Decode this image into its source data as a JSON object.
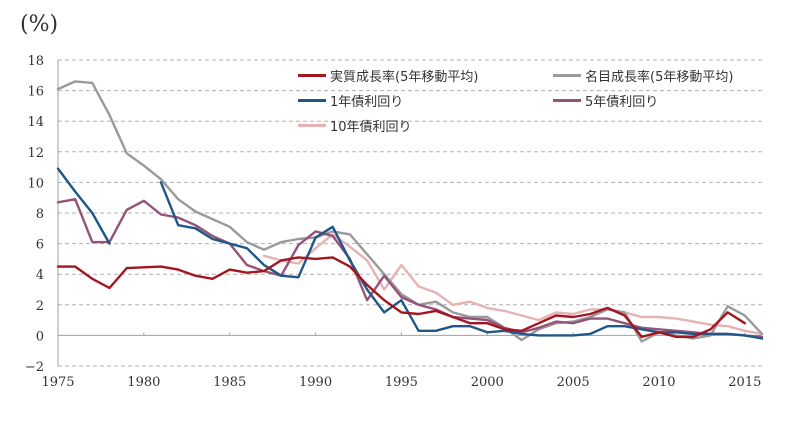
{
  "chart_data": {
    "type": "line",
    "title": "",
    "unit_label": "(%)",
    "xlabel": "",
    "ylabel": "(%)",
    "xlim": [
      1975,
      2016
    ],
    "ylim": [
      -2,
      18
    ],
    "grid": true,
    "y_ticks": [
      -2,
      0,
      2,
      4,
      6,
      8,
      10,
      12,
      14,
      16,
      18
    ],
    "x_ticks": [
      1975,
      1980,
      1985,
      1990,
      1995,
      2000,
      2005,
      2010,
      2015
    ],
    "legend_position": "top-right",
    "series": [
      {
        "name": "実質成長率(5年移動平均)",
        "color": "#a3161f",
        "points": [
          [
            1975,
            4.5
          ],
          [
            1976,
            4.5
          ],
          [
            1977,
            3.7
          ],
          [
            1978,
            3.1
          ],
          [
            1979,
            4.4
          ],
          [
            1980,
            4.45
          ],
          [
            1981,
            4.5
          ],
          [
            1982,
            4.3
          ],
          [
            1983,
            3.9
          ],
          [
            1984,
            3.7
          ],
          [
            1985,
            4.3
          ],
          [
            1986,
            4.1
          ],
          [
            1987,
            4.2
          ],
          [
            1988,
            4.9
          ],
          [
            1989,
            5.1
          ],
          [
            1990,
            5.0
          ],
          [
            1991,
            5.1
          ],
          [
            1992,
            4.5
          ],
          [
            1993,
            3.3
          ],
          [
            1994,
            2.3
          ],
          [
            1995,
            1.5
          ],
          [
            1996,
            1.4
          ],
          [
            1997,
            1.6
          ],
          [
            1998,
            1.2
          ],
          [
            1999,
            0.8
          ],
          [
            2000,
            0.8
          ],
          [
            2001,
            0.4
          ],
          [
            2002,
            0.3
          ],
          [
            2003,
            0.8
          ],
          [
            2004,
            1.3
          ],
          [
            2005,
            1.2
          ],
          [
            2006,
            1.4
          ],
          [
            2007,
            1.8
          ],
          [
            2008,
            1.3
          ],
          [
            2009,
            -0.1
          ],
          [
            2010,
            0.2
          ],
          [
            2011,
            -0.1
          ],
          [
            2012,
            -0.1
          ],
          [
            2013,
            0.4
          ],
          [
            2014,
            1.5
          ],
          [
            2015,
            0.8
          ]
        ]
      },
      {
        "name": "名目成長率(5年移動平均)",
        "color": "#9a9a9a",
        "points": [
          [
            1975,
            16.1
          ],
          [
            1976,
            16.6
          ],
          [
            1977,
            16.5
          ],
          [
            1978,
            14.4
          ],
          [
            1979,
            11.9
          ],
          [
            1980,
            11.1
          ],
          [
            1981,
            10.2
          ],
          [
            1982,
            8.9
          ],
          [
            1983,
            8.1
          ],
          [
            1984,
            7.6
          ],
          [
            1985,
            7.1
          ],
          [
            1986,
            6.1
          ],
          [
            1987,
            5.6
          ],
          [
            1988,
            6.1
          ],
          [
            1989,
            6.3
          ],
          [
            1990,
            6.4
          ],
          [
            1991,
            6.8
          ],
          [
            1992,
            6.6
          ],
          [
            1993,
            5.3
          ],
          [
            1994,
            4.0
          ],
          [
            1995,
            2.7
          ],
          [
            1996,
            2.0
          ],
          [
            1997,
            2.2
          ],
          [
            1998,
            1.5
          ],
          [
            1999,
            1.2
          ],
          [
            2000,
            1.2
          ],
          [
            2001,
            0.5
          ],
          [
            2002,
            -0.3
          ],
          [
            2003,
            0.4
          ],
          [
            2004,
            0.8
          ],
          [
            2005,
            0.9
          ],
          [
            2006,
            1.2
          ],
          [
            2007,
            1.7
          ],
          [
            2008,
            1.5
          ],
          [
            2009,
            -0.4
          ],
          [
            2010,
            0.2
          ],
          [
            2011,
            0.0
          ],
          [
            2012,
            -0.2
          ],
          [
            2013,
            0.0
          ],
          [
            2014,
            1.9
          ],
          [
            2015,
            1.3
          ],
          [
            2016,
            0.1
          ]
        ]
      },
      {
        "name": "1年債利回り",
        "color": "#1f5788",
        "segments": [
          [
            [
              1975,
              10.9
            ],
            [
              1976,
              9.4
            ],
            [
              1977,
              8.0
            ],
            [
              1978,
              6.0
            ]
          ],
          [
            [
              1981,
              10.0
            ],
            [
              1982,
              7.2
            ],
            [
              1983,
              7.0
            ],
            [
              1984,
              6.3
            ],
            [
              1985,
              6.0
            ],
            [
              1986,
              5.7
            ],
            [
              1987,
              4.6
            ],
            [
              1988,
              3.9
            ],
            [
              1989,
              3.8
            ],
            [
              1990,
              6.4
            ],
            [
              1991,
              7.1
            ],
            [
              1992,
              4.9
            ],
            [
              1993,
              3.0
            ],
            [
              1994,
              1.5
            ],
            [
              1995,
              2.3
            ],
            [
              1996,
              0.3
            ],
            [
              1997,
              0.3
            ],
            [
              1998,
              0.6
            ],
            [
              1999,
              0.6
            ],
            [
              2000,
              0.2
            ],
            [
              2001,
              0.3
            ],
            [
              2002,
              0.1
            ],
            [
              2003,
              0.0
            ],
            [
              2004,
              0.0
            ],
            [
              2005,
              0.0
            ],
            [
              2006,
              0.1
            ],
            [
              2007,
              0.6
            ],
            [
              2008,
              0.6
            ],
            [
              2009,
              0.4
            ],
            [
              2010,
              0.2
            ],
            [
              2011,
              0.2
            ],
            [
              2012,
              0.1
            ],
            [
              2013,
              0.1
            ],
            [
              2014,
              0.1
            ],
            [
              2015,
              0.0
            ],
            [
              2016,
              -0.2
            ]
          ]
        ]
      },
      {
        "name": "5年債利回り",
        "color": "#945378",
        "points": [
          [
            1975,
            8.7
          ],
          [
            1976,
            8.9
          ],
          [
            1977,
            6.1
          ],
          [
            1978,
            6.1
          ],
          [
            1979,
            8.2
          ],
          [
            1980,
            8.8
          ],
          [
            1981,
            7.9
          ],
          [
            1982,
            7.7
          ],
          [
            1983,
            7.2
          ],
          [
            1984,
            6.5
          ],
          [
            1985,
            6.0
          ],
          [
            1986,
            4.6
          ],
          [
            1987,
            4.2
          ],
          [
            1988,
            3.9
          ],
          [
            1989,
            5.9
          ],
          [
            1990,
            6.8
          ],
          [
            1991,
            6.5
          ],
          [
            1992,
            5.0
          ],
          [
            1993,
            2.3
          ],
          [
            1994,
            3.9
          ],
          [
            1995,
            2.5
          ],
          [
            1996,
            2.0
          ],
          [
            1997,
            1.7
          ],
          [
            1998,
            1.2
          ],
          [
            1999,
            1.1
          ],
          [
            2000,
            1.0
          ],
          [
            2001,
            0.5
          ],
          [
            2002,
            0.2
          ],
          [
            2003,
            0.5
          ],
          [
            2004,
            0.9
          ],
          [
            2005,
            0.8
          ],
          [
            2006,
            1.1
          ],
          [
            2007,
            1.1
          ],
          [
            2008,
            0.8
          ],
          [
            2009,
            0.5
          ],
          [
            2010,
            0.4
          ],
          [
            2011,
            0.3
          ],
          [
            2012,
            0.2
          ],
          [
            2013,
            0.1
          ],
          [
            2014,
            0.1
          ],
          [
            2015,
            0.0
          ],
          [
            2016,
            -0.1
          ]
        ]
      },
      {
        "name": "10年債利回り",
        "color": "#e6b2b5",
        "points": [
          [
            1987,
            5.2
          ],
          [
            1988,
            4.9
          ],
          [
            1989,
            4.7
          ],
          [
            1990,
            5.7
          ],
          [
            1991,
            6.6
          ],
          [
            1992,
            5.8
          ],
          [
            1993,
            4.9
          ],
          [
            1994,
            3.0
          ],
          [
            1995,
            4.6
          ],
          [
            1996,
            3.2
          ],
          [
            1997,
            2.8
          ],
          [
            1998,
            2.0
          ],
          [
            1999,
            2.2
          ],
          [
            2000,
            1.8
          ],
          [
            2001,
            1.6
          ],
          [
            2002,
            1.3
          ],
          [
            2003,
            1.0
          ],
          [
            2004,
            1.5
          ],
          [
            2005,
            1.4
          ],
          [
            2006,
            1.7
          ],
          [
            2007,
            1.7
          ],
          [
            2008,
            1.5
          ],
          [
            2009,
            1.2
          ],
          [
            2010,
            1.2
          ],
          [
            2011,
            1.1
          ],
          [
            2012,
            0.9
          ],
          [
            2013,
            0.7
          ],
          [
            2014,
            0.6
          ],
          [
            2015,
            0.3
          ],
          [
            2016,
            0.1
          ]
        ]
      }
    ]
  }
}
